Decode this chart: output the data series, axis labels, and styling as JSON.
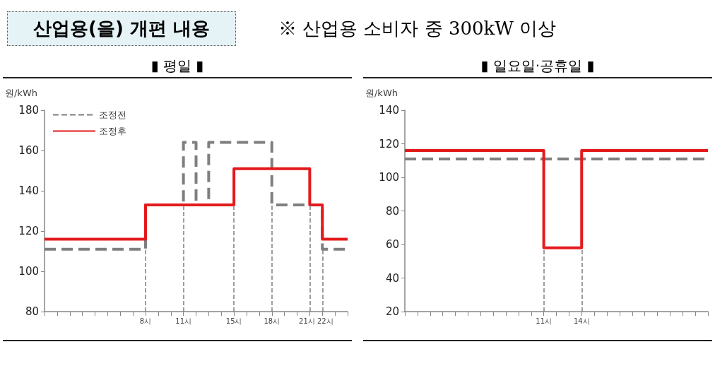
{
  "chart_data": [
    {
      "type": "step",
      "title": "산업용(을) 개편 내용",
      "annotations": [
        "※ 산업용 소비자 중 300kW 이상"
      ],
      "subtitle": "▮ 평일 ▮",
      "ylabel": "원/kWh",
      "xlim": [
        0,
        24
      ],
      "xticks": [
        {
          "value": 0,
          "label": null
        },
        {
          "value": 1,
          "label": null
        },
        {
          "value": 2,
          "label": null
        },
        {
          "value": 3,
          "label": null
        },
        {
          "value": 4,
          "label": null
        },
        {
          "value": 5,
          "label": null
        },
        {
          "value": 6,
          "label": null
        },
        {
          "value": 7,
          "label": null
        },
        {
          "value": 8,
          "label": "8시"
        },
        {
          "value": 9,
          "label": null
        },
        {
          "value": 10,
          "label": null
        },
        {
          "value": 11,
          "label": "11시"
        },
        {
          "value": 12,
          "label": null
        },
        {
          "value": 13,
          "label": null
        },
        {
          "value": 14,
          "label": null
        },
        {
          "value": 15,
          "label": "15시"
        },
        {
          "value": 16,
          "label": null
        },
        {
          "value": 17,
          "label": null
        },
        {
          "value": 18,
          "label": "18시"
        },
        {
          "value": 19,
          "label": null
        },
        {
          "value": 20,
          "label": null
        },
        {
          "value": 21,
          "label": "21시"
        },
        {
          "value": 22,
          "label": "22시"
        },
        {
          "value": 23,
          "label": null
        },
        {
          "value": 24,
          "label": null
        }
      ],
      "ylim": [
        80,
        180
      ],
      "yticks": [
        80,
        100,
        120,
        140,
        160,
        180
      ],
      "grid": false,
      "legend": "top left",
      "marker": "none",
      "series": [
        {
          "name": "조정전",
          "color": "#7f7f7f",
          "line_style": "dashed",
          "x": [
            0,
            8,
            11,
            12,
            13,
            18,
            22,
            24
          ],
          "values": [
            111,
            133,
            164,
            133,
            164,
            133,
            111,
            111
          ]
        },
        {
          "name": "조정후",
          "color": "#e31a1c",
          "line_style": "solid",
          "x": [
            0,
            8,
            15,
            21,
            22,
            24
          ],
          "values": [
            116,
            133,
            151,
            133,
            116,
            116
          ]
        }
      ],
      "ref_lines": [
        {
          "axis": "x",
          "value": 8,
          "color": "#7f7f7f",
          "line_style": "dashed"
        },
        {
          "axis": "x",
          "value": 11,
          "color": "#7f7f7f",
          "line_style": "dashed"
        },
        {
          "axis": "x",
          "value": 15,
          "color": "#7f7f7f",
          "line_style": "dashed"
        },
        {
          "axis": "x",
          "value": 18,
          "color": "#7f7f7f",
          "line_style": "dashed"
        },
        {
          "axis": "x",
          "value": 21,
          "color": "#7f7f7f",
          "line_style": "dashed"
        },
        {
          "axis": "x",
          "value": 22,
          "color": "#7f7f7f",
          "line_style": "dashed"
        }
      ]
    },
    {
      "type": "step",
      "subtitle": "▮ 일요일·공휴일 ▮",
      "ylabel": "원/kWh",
      "xlim": [
        0,
        24
      ],
      "xticks": [
        {
          "value": 0,
          "label": null
        },
        {
          "value": 1,
          "label": null
        },
        {
          "value": 2,
          "label": null
        },
        {
          "value": 3,
          "label": null
        },
        {
          "value": 4,
          "label": null
        },
        {
          "value": 5,
          "label": null
        },
        {
          "value": 6,
          "label": null
        },
        {
          "value": 7,
          "label": null
        },
        {
          "value": 8,
          "label": null
        },
        {
          "value": 9,
          "label": null
        },
        {
          "value": 10,
          "label": null
        },
        {
          "value": 11,
          "label": "11시"
        },
        {
          "value": 12,
          "label": null
        },
        {
          "value": 13,
          "label": null
        },
        {
          "value": 14,
          "label": "14시"
        },
        {
          "value": 15,
          "label": null
        },
        {
          "value": 16,
          "label": null
        },
        {
          "value": 17,
          "label": null
        },
        {
          "value": 18,
          "label": null
        },
        {
          "value": 19,
          "label": null
        },
        {
          "value": 20,
          "label": null
        },
        {
          "value": 21,
          "label": null
        },
        {
          "value": 22,
          "label": null
        },
        {
          "value": 23,
          "label": null
        },
        {
          "value": 24,
          "label": null
        }
      ],
      "ylim": [
        20,
        140
      ],
      "yticks": [
        20,
        40,
        60,
        80,
        100,
        120,
        140
      ],
      "grid": false,
      "marker": "none",
      "series": [
        {
          "color": "#7f7f7f",
          "line_style": "dashed",
          "x": [
            0,
            24
          ],
          "values": [
            111,
            111
          ]
        },
        {
          "color": "#e31a1c",
          "line_style": "solid",
          "x": [
            0,
            11,
            14,
            24
          ],
          "values": [
            116,
            58,
            116,
            116
          ]
        }
      ],
      "ref_lines": [
        {
          "axis": "x",
          "value": 11,
          "color": "#7f7f7f",
          "line_style": "dashed"
        },
        {
          "axis": "x",
          "value": 14,
          "color": "#7f7f7f",
          "line_style": "dashed"
        }
      ]
    }
  ]
}
